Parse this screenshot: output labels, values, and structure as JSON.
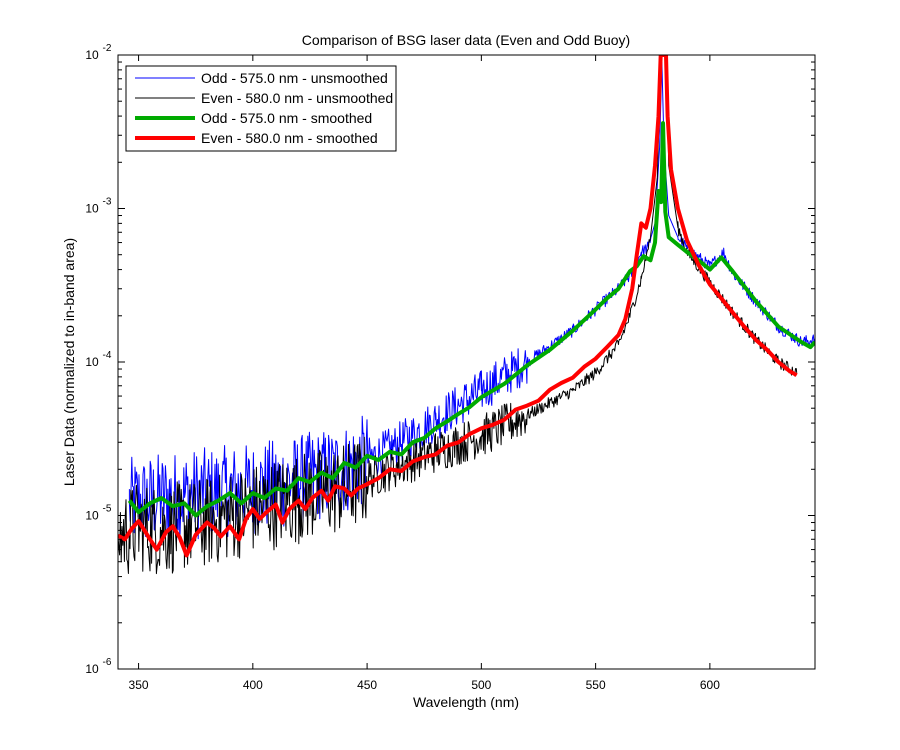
{
  "chart_data": {
    "type": "line",
    "title": "Comparison of BSG laser data (Even and Odd Buoy)",
    "xlabel": "Wavelength (nm)",
    "ylabel": "Laser Data (normalized to in-band area)",
    "xlim": [
      341,
      646
    ],
    "ylim_exponents": [
      -6,
      -2
    ],
    "yscale": "log",
    "x_ticks": [
      350,
      400,
      450,
      500,
      550,
      600
    ],
    "y_tick_labels": [
      {
        "base": "10",
        "exp": "-6"
      },
      {
        "base": "10",
        "exp": "-5"
      },
      {
        "base": "10",
        "exp": "-4"
      },
      {
        "base": "10",
        "exp": "-3"
      },
      {
        "base": "10",
        "exp": "-2"
      }
    ],
    "grid": false,
    "legend_position": "top-left",
    "series": [
      {
        "name": "Odd - 575.0 nm - unsmoothed",
        "color": "#0000ff",
        "linewidth": "thin",
        "noisy": true,
        "anchors": [
          [
            346,
            1.2e-05
          ],
          [
            360,
            1.3e-05
          ],
          [
            380,
            1.4e-05
          ],
          [
            400,
            1.5e-05
          ],
          [
            420,
            1.7e-05
          ],
          [
            440,
            2e-05
          ],
          [
            460,
            2.7e-05
          ],
          [
            480,
            4.2e-05
          ],
          [
            500,
            6.5e-05
          ],
          [
            520,
            0.0001
          ],
          [
            540,
            0.00016
          ],
          [
            550,
            0.00022
          ],
          [
            560,
            0.0003
          ],
          [
            566,
            0.00038
          ],
          [
            570,
            0.00052
          ],
          [
            573,
            0.00056
          ],
          [
            576,
            0.0008
          ],
          [
            578,
            0.0025
          ],
          [
            579,
            0.009
          ],
          [
            580,
            0.0024
          ],
          [
            582,
            0.0009
          ],
          [
            586,
            0.00065
          ],
          [
            590,
            0.00055
          ],
          [
            600,
            0.00042
          ],
          [
            606,
            0.00052
          ],
          [
            610,
            0.00038
          ],
          [
            620,
            0.00025
          ],
          [
            630,
            0.00017
          ],
          [
            640,
            0.000135
          ],
          [
            646,
            0.00014
          ]
        ]
      },
      {
        "name": "Even - 580.0 nm - unsmoothed",
        "color": "#000000",
        "linewidth": "thin",
        "noisy": true,
        "anchors": [
          [
            341,
            7.3e-06
          ],
          [
            350,
            8.5e-06
          ],
          [
            360,
            8e-06
          ],
          [
            370,
            8.5e-06
          ],
          [
            380,
            9e-06
          ],
          [
            390,
            1e-05
          ],
          [
            400,
            1.1e-05
          ],
          [
            420,
            1.3e-05
          ],
          [
            440,
            1.5e-05
          ],
          [
            460,
            2e-05
          ],
          [
            480,
            2.6e-05
          ],
          [
            500,
            3.3e-05
          ],
          [
            520,
            4.5e-05
          ],
          [
            540,
            6.5e-05
          ],
          [
            550,
            8.5e-05
          ],
          [
            560,
            0.00013
          ],
          [
            565,
            0.0002
          ],
          [
            570,
            0.00035
          ],
          [
            574,
            0.00065
          ],
          [
            577,
            0.0016
          ],
          [
            578.5,
            0.01
          ],
          [
            581,
            0.01
          ],
          [
            582,
            0.0019
          ],
          [
            586,
            0.00075
          ],
          [
            590,
            0.00052
          ],
          [
            600,
            0.00033
          ],
          [
            610,
            0.00021
          ],
          [
            620,
            0.00014
          ],
          [
            630,
            0.0001
          ],
          [
            638,
            8.5e-05
          ]
        ]
      },
      {
        "name": "Odd - 575.0 nm - smoothed",
        "color": "#00aa00",
        "linewidth": "thick",
        "noisy": false,
        "anchors": [
          [
            346,
            1.25e-05
          ],
          [
            350,
            1.05e-05
          ],
          [
            355,
            1.2e-05
          ],
          [
            360,
            1.3e-05
          ],
          [
            365,
            1.15e-05
          ],
          [
            370,
            1.2e-05
          ],
          [
            375,
            1e-05
          ],
          [
            380,
            1.15e-05
          ],
          [
            385,
            1.25e-05
          ],
          [
            390,
            1.4e-05
          ],
          [
            395,
            1.2e-05
          ],
          [
            400,
            1.4e-05
          ],
          [
            405,
            1.3e-05
          ],
          [
            410,
            1.5e-05
          ],
          [
            415,
            1.45e-05
          ],
          [
            420,
            1.75e-05
          ],
          [
            425,
            1.65e-05
          ],
          [
            430,
            1.9e-05
          ],
          [
            435,
            1.75e-05
          ],
          [
            440,
            2.2e-05
          ],
          [
            445,
            2.05e-05
          ],
          [
            450,
            2.45e-05
          ],
          [
            455,
            2.3e-05
          ],
          [
            460,
            2.6e-05
          ],
          [
            465,
            2.5e-05
          ],
          [
            470,
            3e-05
          ],
          [
            475,
            3.2e-05
          ],
          [
            480,
            3.7e-05
          ],
          [
            485,
            4.1e-05
          ],
          [
            490,
            4.6e-05
          ],
          [
            495,
            5.1e-05
          ],
          [
            500,
            5.9e-05
          ],
          [
            510,
            7.2e-05
          ],
          [
            520,
            9.5e-05
          ],
          [
            530,
            0.00012
          ],
          [
            540,
            0.00016
          ],
          [
            550,
            0.00022
          ],
          [
            555,
            0.00026
          ],
          [
            560,
            0.0003
          ],
          [
            565,
            0.00039
          ],
          [
            568,
            0.00042
          ],
          [
            571,
            0.00049
          ],
          [
            574,
            0.00046
          ],
          [
            576,
            0.0006
          ],
          [
            577.5,
            0.0013
          ],
          [
            578.7,
            0.0011
          ],
          [
            579.5,
            0.0036
          ],
          [
            580.5,
            0.00095
          ],
          [
            582,
            0.00065
          ],
          [
            586,
            0.00058
          ],
          [
            590,
            0.00052
          ],
          [
            595,
            0.00046
          ],
          [
            600,
            0.0004
          ],
          [
            605,
            0.00048
          ],
          [
            610,
            0.00039
          ],
          [
            620,
            0.00025
          ],
          [
            630,
            0.00017
          ],
          [
            640,
            0.000135
          ],
          [
            644,
            0.000125
          ],
          [
            646,
            0.000135
          ]
        ]
      },
      {
        "name": "Even - 580.0 nm - smoothed",
        "color": "#ff0000",
        "linewidth": "thick",
        "noisy": false,
        "anchors": [
          [
            341,
            7.4e-06
          ],
          [
            344,
            7e-06
          ],
          [
            347,
            8.2e-06
          ],
          [
            350,
            9.2e-06
          ],
          [
            355,
            7e-06
          ],
          [
            358,
            6e-06
          ],
          [
            362,
            7.8e-06
          ],
          [
            365,
            8.5e-06
          ],
          [
            368,
            7.2e-06
          ],
          [
            371,
            5.5e-06
          ],
          [
            375,
            7.5e-06
          ],
          [
            380,
            9e-06
          ],
          [
            383,
            8.3e-06
          ],
          [
            386,
            7.3e-06
          ],
          [
            390,
            8.5e-06
          ],
          [
            394,
            7e-06
          ],
          [
            397,
            9.5e-06
          ],
          [
            400,
            1.1e-05
          ],
          [
            403,
            9.5e-06
          ],
          [
            406,
            1.05e-05
          ],
          [
            410,
            1.18e-05
          ],
          [
            413,
            9e-06
          ],
          [
            416,
            1.1e-05
          ],
          [
            420,
            1.25e-05
          ],
          [
            423,
            1.1e-05
          ],
          [
            426,
            1.3e-05
          ],
          [
            430,
            1.45e-05
          ],
          [
            433,
            1.25e-05
          ],
          [
            436,
            1.55e-05
          ],
          [
            440,
            1.5e-05
          ],
          [
            443,
            1.35e-05
          ],
          [
            446,
            1.5e-05
          ],
          [
            450,
            1.6e-05
          ],
          [
            455,
            1.75e-05
          ],
          [
            460,
            2e-05
          ],
          [
            465,
            1.95e-05
          ],
          [
            470,
            2.25e-05
          ],
          [
            475,
            2.4e-05
          ],
          [
            480,
            2.5e-05
          ],
          [
            485,
            2.85e-05
          ],
          [
            490,
            3e-05
          ],
          [
            495,
            3.4e-05
          ],
          [
            500,
            3.7e-05
          ],
          [
            505,
            3.9e-05
          ],
          [
            510,
            4.2e-05
          ],
          [
            515,
            4.9e-05
          ],
          [
            520,
            5.2e-05
          ],
          [
            525,
            5.6e-05
          ],
          [
            530,
            6.6e-05
          ],
          [
            535,
            7.3e-05
          ],
          [
            540,
            7.9e-05
          ],
          [
            545,
            9.3e-05
          ],
          [
            550,
            0.000105
          ],
          [
            555,
            0.000125
          ],
          [
            560,
            0.00015
          ],
          [
            563,
            0.00019
          ],
          [
            566,
            0.0003
          ],
          [
            568,
            0.0005
          ],
          [
            570,
            0.0008
          ],
          [
            572,
            0.00075
          ],
          [
            574,
            0.001
          ],
          [
            576,
            0.0019
          ],
          [
            577.5,
            0.004
          ],
          [
            578.5,
            0.01
          ],
          [
            580.8,
            0.01
          ],
          [
            581.5,
            0.004
          ],
          [
            583,
            0.0018
          ],
          [
            586,
            0.001
          ],
          [
            590,
            0.00062
          ],
          [
            595,
            0.00043
          ],
          [
            600,
            0.00032
          ],
          [
            605,
            0.00026
          ],
          [
            610,
            0.00021
          ],
          [
            615,
            0.00017
          ],
          [
            620,
            0.00014
          ],
          [
            625,
            0.00012
          ],
          [
            630,
            0.0001
          ],
          [
            635,
            8.7e-05
          ],
          [
            638,
            8.2e-05
          ]
        ]
      }
    ]
  }
}
